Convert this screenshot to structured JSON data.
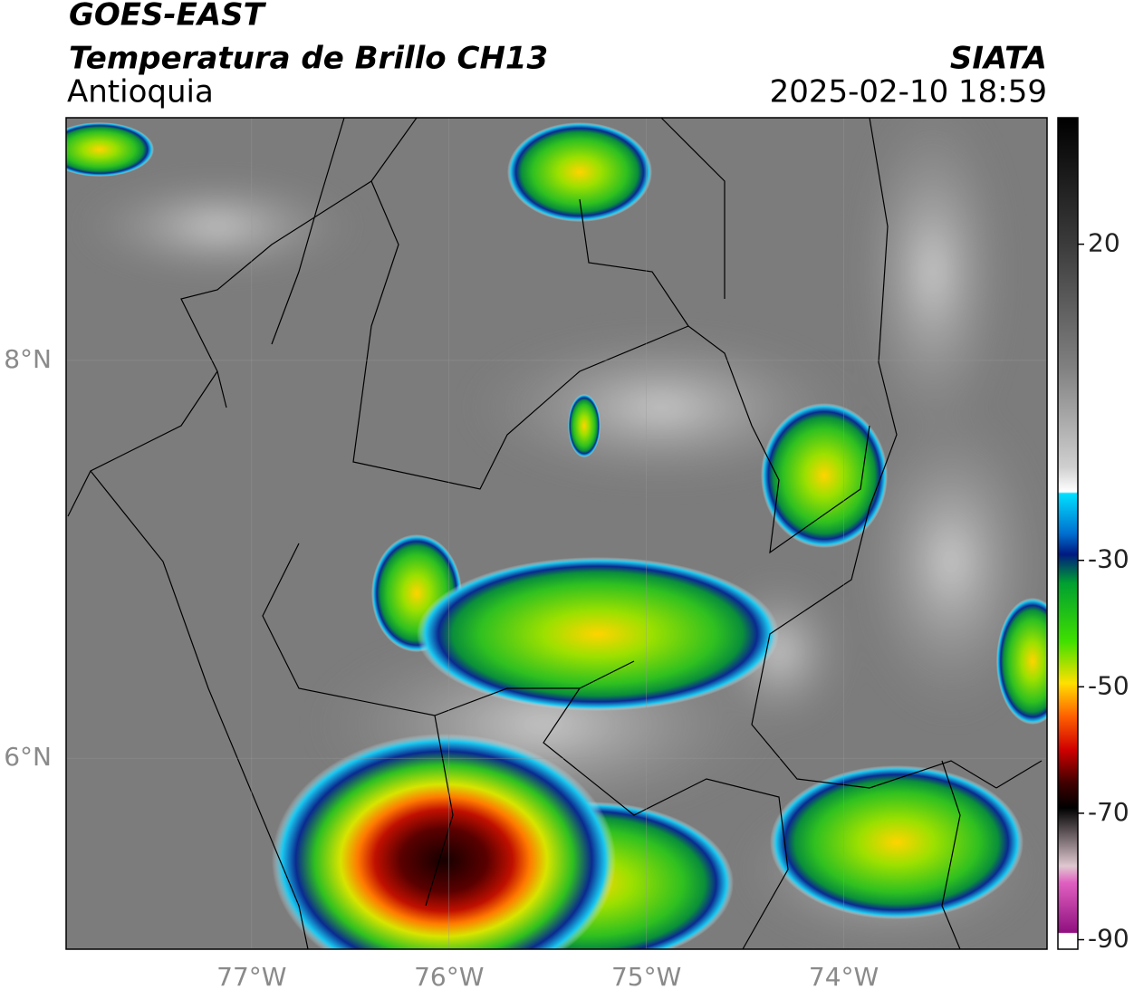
{
  "header": {
    "line1": "GOES-EAST",
    "line2": "Temperatura de Brillo CH13",
    "region": "Antioquia",
    "source": "SIATA",
    "datetime": "2025-02-10 18:59"
  },
  "map": {
    "lonlim": [
      -77.94,
      -72.97
    ],
    "latlim": [
      5.04,
      9.22
    ],
    "lon_ticks": [
      {
        "value": -77,
        "label": "77°W"
      },
      {
        "value": -76,
        "label": "76°W"
      },
      {
        "value": -75,
        "label": "75°W"
      },
      {
        "value": -74,
        "label": "74°W"
      }
    ],
    "lat_ticks": [
      {
        "value": 8,
        "label": "8°N"
      },
      {
        "value": 6,
        "label": "6°N"
      }
    ]
  },
  "colorbar": {
    "range": [
      -91.5,
      40
    ],
    "ticks": [
      20,
      -30,
      -50,
      -70,
      -90
    ]
  }
}
